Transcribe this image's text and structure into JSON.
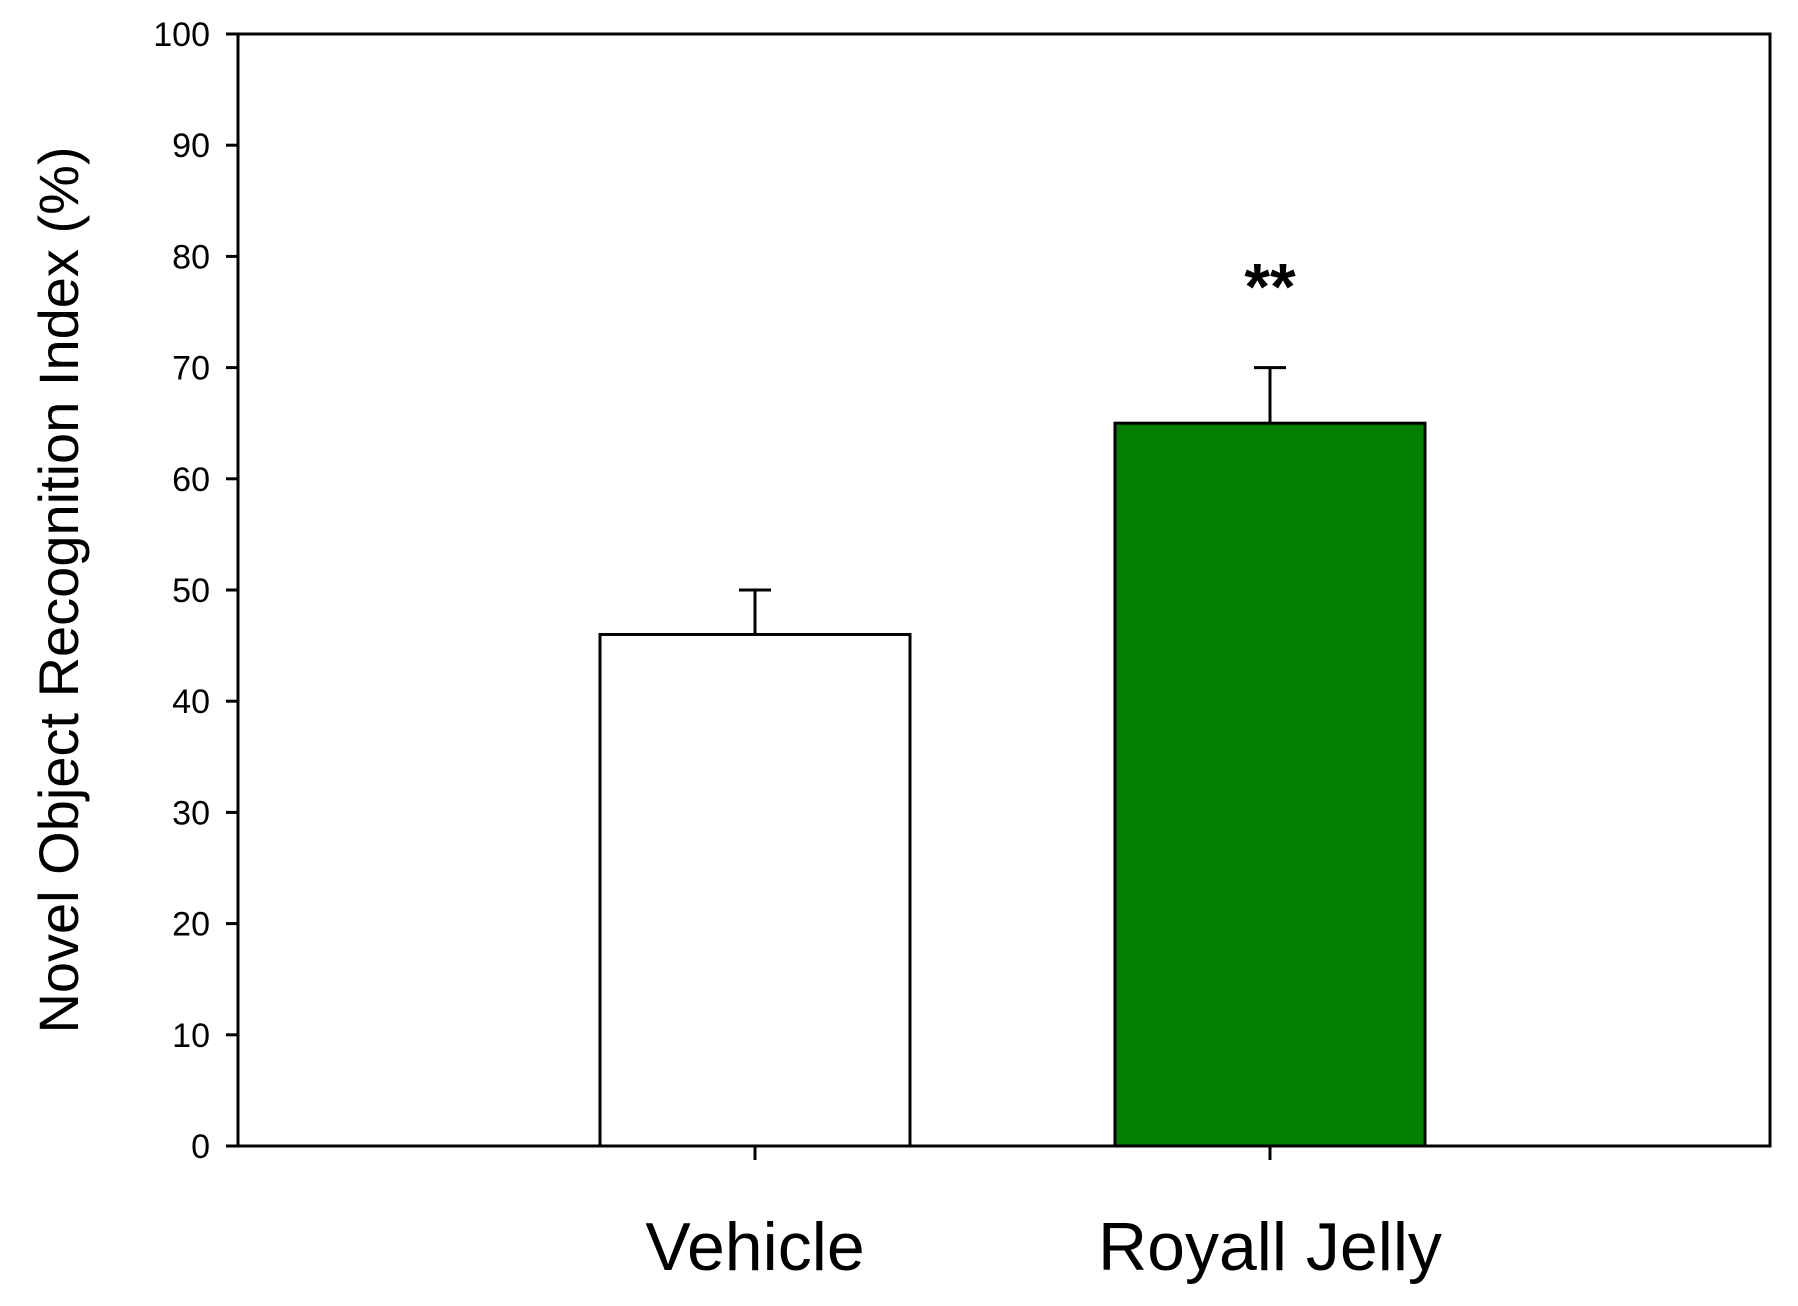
{
  "chart_data": {
    "type": "bar",
    "categories": [
      "Vehicle",
      "Royall Jelly"
    ],
    "values": [
      46,
      65
    ],
    "errors": [
      4,
      5
    ],
    "bar_colors": [
      "#ffffff",
      "#007f00"
    ],
    "annotations": [
      "",
      "**"
    ],
    "title": "",
    "xlabel": "",
    "ylabel": "Novel Object Recognition Index (%)",
    "ylim": [
      0,
      100
    ],
    "yticks": [
      0,
      10,
      20,
      30,
      40,
      50,
      60,
      70,
      80,
      90,
      100
    ],
    "grid": false,
    "legend": "none"
  }
}
